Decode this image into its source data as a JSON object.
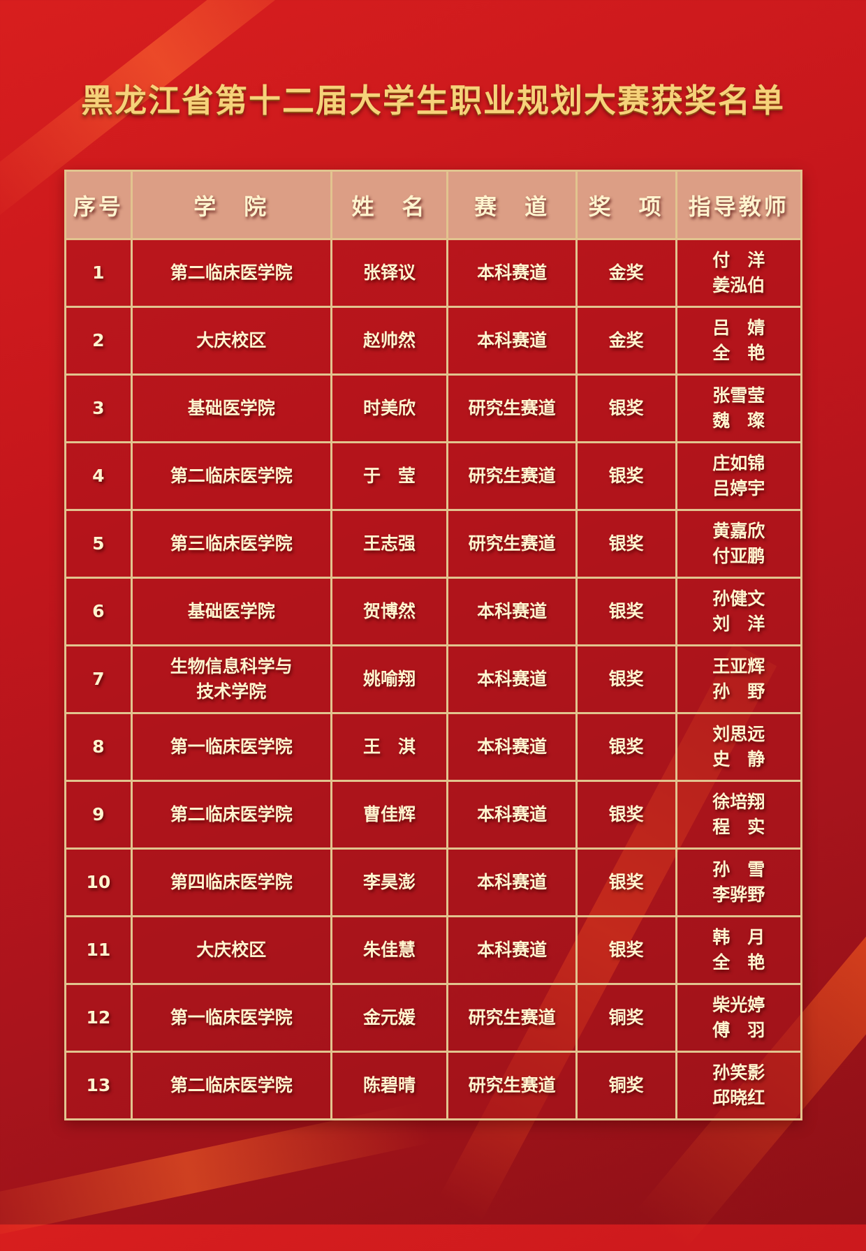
{
  "title": "黑龙江省第十二届大学生职业规划大赛获奖名单",
  "colors": {
    "background": "#c4161c",
    "header_bg": "#dc9e85",
    "border": "#e2c48f",
    "text": "#fff4cf",
    "title": "#f6d27a"
  },
  "headers": [
    "序号",
    "学　院",
    "姓　名",
    "赛　道",
    "奖　项",
    "指导教师"
  ],
  "rows": [
    {
      "no": "1",
      "college": [
        "第二临床医学院"
      ],
      "name": "张铎议",
      "track": "本科赛道",
      "award": "金奖",
      "teachers": [
        "付　洋",
        "姜泓伯"
      ]
    },
    {
      "no": "2",
      "college": [
        "大庆校区"
      ],
      "name": "赵帅然",
      "track": "本科赛道",
      "award": "金奖",
      "teachers": [
        "吕　婧",
        "全　艳"
      ]
    },
    {
      "no": "3",
      "college": [
        "基础医学院"
      ],
      "name": "时美欣",
      "track": "研究生赛道",
      "award": "银奖",
      "teachers": [
        "张雪莹",
        "魏　璨"
      ]
    },
    {
      "no": "4",
      "college": [
        "第二临床医学院"
      ],
      "name": "于　莹",
      "track": "研究生赛道",
      "award": "银奖",
      "teachers": [
        "庄如锦",
        "吕婷宇"
      ]
    },
    {
      "no": "5",
      "college": [
        "第三临床医学院"
      ],
      "name": "王志强",
      "track": "研究生赛道",
      "award": "银奖",
      "teachers": [
        "黄嘉欣",
        "付亚鹏"
      ]
    },
    {
      "no": "6",
      "college": [
        "基础医学院"
      ],
      "name": "贺博然",
      "track": "本科赛道",
      "award": "银奖",
      "teachers": [
        "孙健文",
        "刘　洋"
      ]
    },
    {
      "no": "7",
      "college": [
        "生物信息科学与",
        "技术学院"
      ],
      "name": "姚喻翔",
      "track": "本科赛道",
      "award": "银奖",
      "teachers": [
        "王亚辉",
        "孙　野"
      ]
    },
    {
      "no": "8",
      "college": [
        "第一临床医学院"
      ],
      "name": "王　淇",
      "track": "本科赛道",
      "award": "银奖",
      "teachers": [
        "刘思远",
        "史　静"
      ]
    },
    {
      "no": "9",
      "college": [
        "第二临床医学院"
      ],
      "name": "曹佳辉",
      "track": "本科赛道",
      "award": "银奖",
      "teachers": [
        "徐培翔",
        "程　实"
      ]
    },
    {
      "no": "10",
      "college": [
        "第四临床医学院"
      ],
      "name": "李昊澎",
      "track": "本科赛道",
      "award": "银奖",
      "teachers": [
        "孙　雪",
        "李骅野"
      ]
    },
    {
      "no": "11",
      "college": [
        "大庆校区"
      ],
      "name": "朱佳慧",
      "track": "本科赛道",
      "award": "银奖",
      "teachers": [
        "韩　月",
        "全　艳"
      ]
    },
    {
      "no": "12",
      "college": [
        "第一临床医学院"
      ],
      "name": "金元媛",
      "track": "研究生赛道",
      "award": "铜奖",
      "teachers": [
        "柴光婷",
        "傅　羽"
      ]
    },
    {
      "no": "13",
      "college": [
        "第二临床医学院"
      ],
      "name": "陈碧晴",
      "track": "研究生赛道",
      "award": "铜奖",
      "teachers": [
        "孙笑影",
        "邱晓红"
      ]
    }
  ]
}
